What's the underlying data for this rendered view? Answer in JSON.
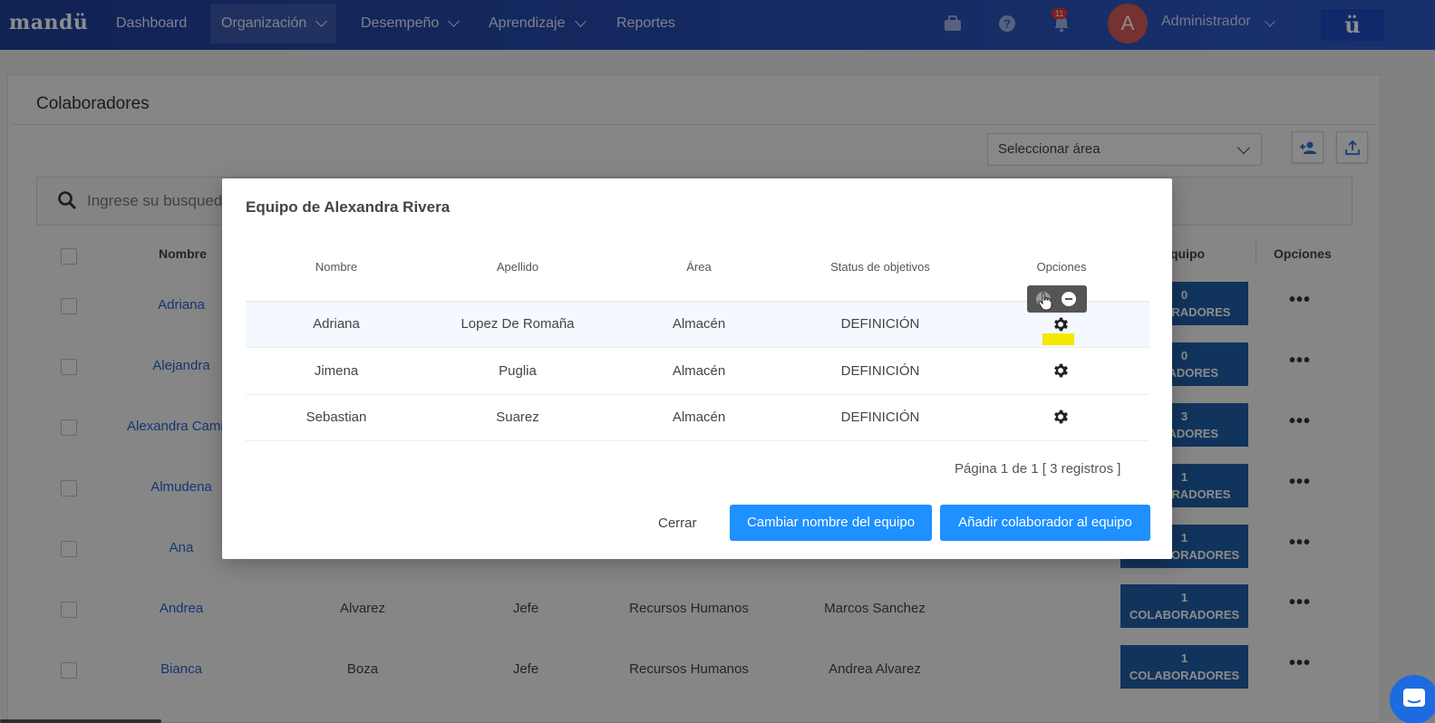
{
  "nav": {
    "logo": "mandü",
    "items": [
      {
        "label": "Dashboard",
        "chevron": false,
        "active": false
      },
      {
        "label": "Organización",
        "chevron": true,
        "active": true
      },
      {
        "label": "Desempeño",
        "chevron": true,
        "active": false
      },
      {
        "label": "Aprendizaje",
        "chevron": true,
        "active": false
      },
      {
        "label": "Reportes",
        "chevron": false,
        "active": false
      }
    ],
    "notification_count": "11",
    "avatar_initial": "A",
    "user_label": "Administrador",
    "brand_button": "ü"
  },
  "page": {
    "title": "Colaboradores",
    "area_select_placeholder": "Seleccionar área",
    "search_placeholder": "Ingrese su busqued",
    "columns": [
      "Nombre",
      "quipo",
      "Opciones"
    ],
    "rows": [
      {
        "name": "Adriana",
        "apellido": "",
        "cargo": "",
        "area": "",
        "jefe": "",
        "collab_count": "0",
        "collab_label": "LABORADORES"
      },
      {
        "name": "Alejandra",
        "apellido": "",
        "cargo": "",
        "area": "",
        "jefe": "",
        "collab_count": "0",
        "collab_label": "ORADORES"
      },
      {
        "name": "Alexandra Cami",
        "apellido": "",
        "cargo": "",
        "area": "",
        "jefe": "",
        "collab_count": "3",
        "collab_label": "ORADORES"
      },
      {
        "name": "Almudena",
        "apellido": "",
        "cargo": "",
        "area": "",
        "jefe": "",
        "collab_count": "1",
        "collab_label": "LABORADORES"
      },
      {
        "name": "Ana",
        "apellido": "",
        "cargo": "",
        "area": "",
        "jefe": "",
        "collab_count": "1",
        "collab_label": "COLABORADORES"
      },
      {
        "name": "Andrea",
        "apellido": "Alvarez",
        "cargo": "Jefe",
        "area": "Recursos Humanos",
        "jefe": "Marcos Sanchez",
        "collab_count": "1",
        "collab_label": "COLABORADORES"
      },
      {
        "name": "Bianca",
        "apellido": "Boza",
        "cargo": "Jefe",
        "area": "Recursos Humanos",
        "jefe": "Andrea Alvarez",
        "collab_count": "1",
        "collab_label": "COLABORADORES"
      }
    ]
  },
  "modal": {
    "title": "Equipo de Alexandra Rivera",
    "columns": [
      "Nombre",
      "Apellido",
      "Área",
      "Status de objetivos",
      "Opciones"
    ],
    "rows": [
      {
        "nombre": "Adriana",
        "apellido": "Lopez De Romaña",
        "area": "Almacén",
        "status": "DEFINICIÓN"
      },
      {
        "nombre": "Jimena",
        "apellido": "Puglia",
        "area": "Almacén",
        "status": "DEFINICIÓN"
      },
      {
        "nombre": "Sebastian",
        "apellido": "Suarez",
        "area": "Almacén",
        "status": "DEFINICIÓN"
      }
    ],
    "pagination": "Página 1 de 1 [ 3 registros ]",
    "close_label": "Cerrar",
    "rename_label": "Cambiar nombre del equipo",
    "add_label": "Añadir colaborador al equipo"
  },
  "colors": {
    "nav_bg": "#2d5ac8",
    "primary_button": "#1e90ff",
    "collab_button": "#1f5fa8",
    "link": "#2962d4",
    "highlight": "#f5e800"
  }
}
